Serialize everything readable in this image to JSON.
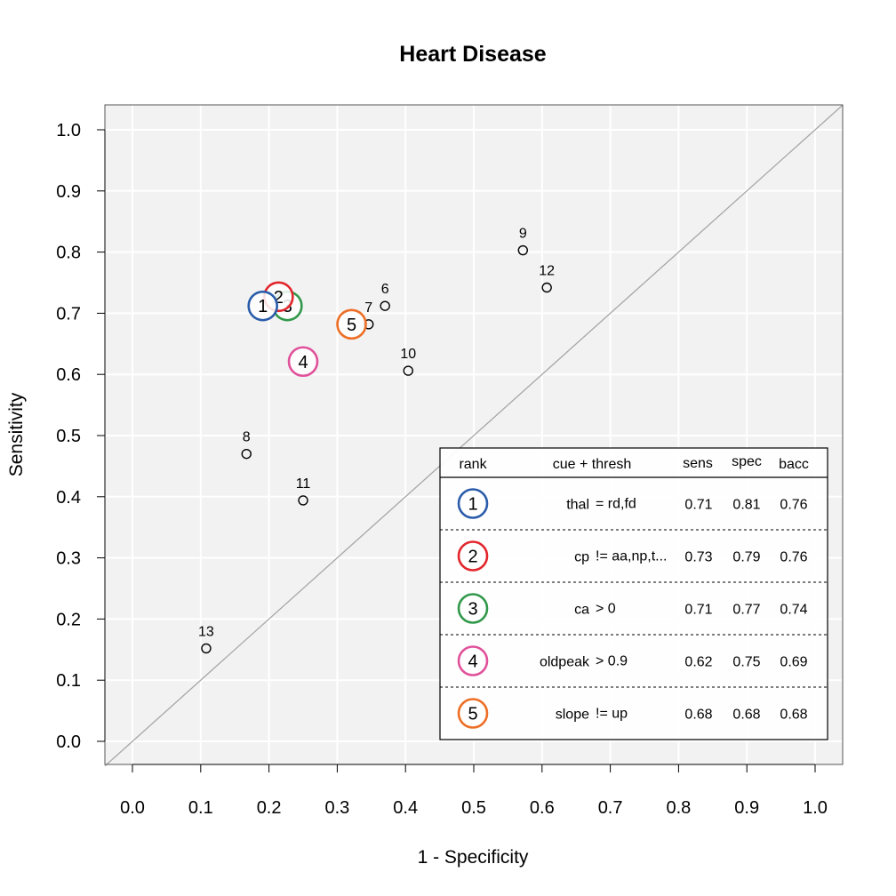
{
  "chart_data": {
    "type": "scatter",
    "title": "Heart Disease",
    "xlabel": "1 - Specificity",
    "ylabel": "Sensitivity",
    "xlim": [
      0,
      1
    ],
    "ylim": [
      0,
      1
    ],
    "x_ticks": [
      "0.0",
      "0.1",
      "0.2",
      "0.3",
      "0.4",
      "0.5",
      "0.6",
      "0.7",
      "0.8",
      "0.9",
      "1.0"
    ],
    "y_ticks": [
      "0.0",
      "0.1",
      "0.2",
      "0.3",
      "0.4",
      "0.5",
      "0.6",
      "0.7",
      "0.8",
      "0.9",
      "1.0"
    ],
    "grid": true,
    "diagonal": true,
    "other_cues": [
      {
        "label": "6",
        "x": 0.37,
        "y": 0.712
      },
      {
        "label": "7",
        "x": 0.346,
        "y": 0.682
      },
      {
        "label": "8",
        "x": 0.167,
        "y": 0.47
      },
      {
        "label": "9",
        "x": 0.572,
        "y": 0.803
      },
      {
        "label": "10",
        "x": 0.404,
        "y": 0.606
      },
      {
        "label": "11",
        "x": 0.25,
        "y": 0.394
      },
      {
        "label": "12",
        "x": 0.607,
        "y": 0.742
      },
      {
        "label": "13",
        "x": 0.108,
        "y": 0.152
      }
    ],
    "top_cues": [
      {
        "rank": "5",
        "x": 0.321,
        "y": 0.682,
        "color": "#ED6E24"
      },
      {
        "rank": "4",
        "x": 0.25,
        "y": 0.621,
        "color": "#E0519A"
      },
      {
        "rank": "3",
        "x": 0.227,
        "y": 0.712,
        "color": "#31984A"
      },
      {
        "rank": "2",
        "x": 0.214,
        "y": 0.727,
        "color": "#E2262C"
      },
      {
        "rank": "1",
        "x": 0.191,
        "y": 0.712,
        "color": "#2A5CAA"
      }
    ],
    "legend": {
      "position": "bottom-right",
      "headers": {
        "rank": "rank",
        "cue_thresh": "cue + thresh",
        "sens": "sens",
        "spec": "spec",
        "bacc": "bacc"
      },
      "rows": [
        {
          "rank": "1",
          "cue": "thal",
          "thresh": "= rd,fd",
          "sens": "0.71",
          "spec": "0.81",
          "bacc": "0.76",
          "color": "#2A5CAA"
        },
        {
          "rank": "2",
          "cue": "cp",
          "thresh": "!= aa,np,t...",
          "sens": "0.73",
          "spec": "0.79",
          "bacc": "0.76",
          "color": "#E2262C"
        },
        {
          "rank": "3",
          "cue": "ca",
          "thresh": "> 0",
          "sens": "0.71",
          "spec": "0.77",
          "bacc": "0.74",
          "color": "#31984A"
        },
        {
          "rank": "4",
          "cue": "oldpeak",
          "thresh": "> 0.9",
          "sens": "0.62",
          "spec": "0.75",
          "bacc": "0.69",
          "color": "#E0519A"
        },
        {
          "rank": "5",
          "cue": "slope",
          "thresh": "!= up",
          "sens": "0.68",
          "spec": "0.68",
          "bacc": "0.68",
          "color": "#ED6E24"
        }
      ]
    }
  }
}
